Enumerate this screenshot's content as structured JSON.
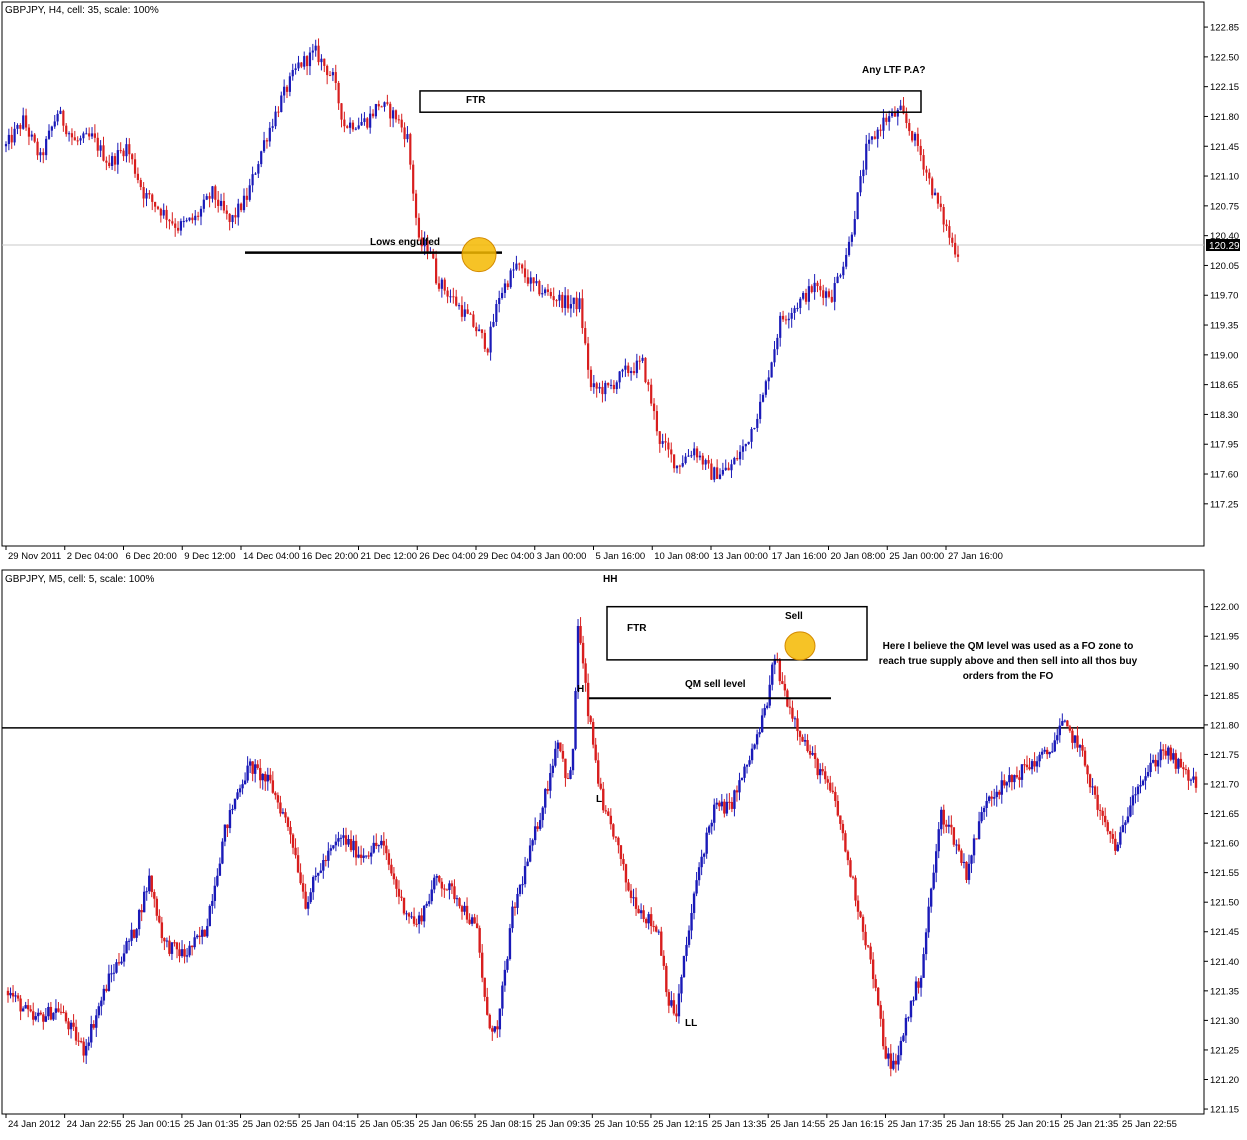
{
  "colors": {
    "bull": "#1a1ab8",
    "bear": "#d81e1e",
    "frame": "#000000",
    "marker": "#f5b800",
    "marker_edge": "#d48a00",
    "current_line": "#c8c8c8"
  },
  "chart_data": [
    {
      "type": "candlestick",
      "title": "GBPJPY, H4, cell: 35, scale: 100%",
      "ylim": [
        117.06,
        122.98
      ],
      "y_ticks": [
        "122.85",
        "122.50",
        "122.15",
        "121.80",
        "121.45",
        "121.10",
        "120.75",
        "120.40",
        "120.05",
        "119.70",
        "119.35",
        "119.00",
        "118.65",
        "118.30",
        "117.95",
        "117.60",
        "117.25"
      ],
      "x_ticks": [
        "29 Nov 2011",
        "2 Dec 04:00",
        "6 Dec 20:00",
        "9 Dec 12:00",
        "14 Dec 04:00",
        "16 Dec 20:00",
        "21 Dec 12:00",
        "26 Dec 04:00",
        "29 Dec 04:00",
        "3 Jan 00:00",
        "5 Jan 16:00",
        "10 Jan 08:00",
        "13 Jan 00:00",
        "17 Jan 16:00",
        "20 Jan 08:00",
        "25 Jan 00:00",
        "27 Jan 16:00"
      ],
      "current_price": "120.29",
      "path_points": [
        [
          0,
          121.45
        ],
        [
          6,
          121.75
        ],
        [
          12,
          121.3
        ],
        [
          18,
          121.85
        ],
        [
          24,
          121.5
        ],
        [
          30,
          121.55
        ],
        [
          36,
          121.25
        ],
        [
          42,
          121.45
        ],
        [
          48,
          120.9
        ],
        [
          54,
          120.7
        ],
        [
          60,
          120.5
        ],
        [
          66,
          120.6
        ],
        [
          72,
          120.9
        ],
        [
          78,
          120.55
        ],
        [
          84,
          120.85
        ],
        [
          90,
          121.5
        ],
        [
          96,
          122.0
        ],
        [
          102,
          122.4
        ],
        [
          108,
          122.55
        ],
        [
          114,
          122.25
        ],
        [
          118,
          121.7
        ],
        [
          126,
          121.75
        ],
        [
          130,
          121.95
        ],
        [
          136,
          121.8
        ],
        [
          140,
          121.55
        ],
        [
          144,
          120.3
        ],
        [
          148,
          120.25
        ],
        [
          150,
          119.9
        ],
        [
          156,
          119.65
        ],
        [
          162,
          119.4
        ],
        [
          168,
          119.1
        ],
        [
          172,
          119.7
        ],
        [
          178,
          120.05
        ],
        [
          184,
          119.8
        ],
        [
          190,
          119.7
        ],
        [
          196,
          119.6
        ],
        [
          200,
          119.6
        ],
        [
          204,
          118.6
        ],
        [
          210,
          118.6
        ],
        [
          216,
          118.8
        ],
        [
          222,
          118.9
        ],
        [
          228,
          118.0
        ],
        [
          234,
          117.7
        ],
        [
          240,
          117.9
        ],
        [
          246,
          117.6
        ],
        [
          252,
          117.65
        ],
        [
          258,
          117.95
        ],
        [
          264,
          118.5
        ],
        [
          270,
          119.4
        ],
        [
          276,
          119.6
        ],
        [
          282,
          119.8
        ],
        [
          288,
          119.7
        ],
        [
          294,
          120.3
        ],
        [
          300,
          121.4
        ],
        [
          306,
          121.75
        ],
        [
          312,
          121.85
        ],
        [
          318,
          121.45
        ],
        [
          324,
          120.85
        ],
        [
          330,
          120.3
        ],
        [
          332,
          120.2
        ]
      ],
      "annotations": {
        "ftr": "FTR",
        "ltf": "Any LTF P.A?",
        "lows": "Lows engulfed"
      },
      "ftr_zone": [
        121.85,
        122.1
      ],
      "lows_level": 120.2
    },
    {
      "type": "candlestick",
      "title": "GBPJPY, M5, cell: 5, scale: 100%",
      "ylim": [
        121.145,
        122.035
      ],
      "y_ticks": [
        "122.00",
        "121.95",
        "121.90",
        "121.85",
        "121.80",
        "121.75",
        "121.70",
        "121.65",
        "121.60",
        "121.55",
        "121.50",
        "121.45",
        "121.40",
        "121.35",
        "121.30",
        "121.25",
        "121.20",
        "121.15"
      ],
      "x_ticks": [
        "24 Jan 2012",
        "24 Jan 22:55",
        "25 Jan 00:15",
        "25 Jan 01:35",
        "25 Jan 02:55",
        "25 Jan 04:15",
        "25 Jan 05:35",
        "25 Jan 06:55",
        "25 Jan 08:15",
        "25 Jan 09:35",
        "25 Jan 10:55",
        "25 Jan 12:15",
        "25 Jan 13:35",
        "25 Jan 14:55",
        "25 Jan 16:15",
        "25 Jan 17:35",
        "25 Jan 18:55",
        "25 Jan 20:15",
        "25 Jan 21:35",
        "25 Jan 22:55"
      ],
      "path_points": [
        [
          0,
          121.35
        ],
        [
          10,
          121.3
        ],
        [
          20,
          121.32
        ],
        [
          30,
          121.25
        ],
        [
          40,
          121.37
        ],
        [
          50,
          121.45
        ],
        [
          56,
          121.54
        ],
        [
          62,
          121.43
        ],
        [
          70,
          121.41
        ],
        [
          78,
          121.45
        ],
        [
          86,
          121.62
        ],
        [
          92,
          121.7
        ],
        [
          96,
          121.73
        ],
        [
          104,
          121.7
        ],
        [
          112,
          121.62
        ],
        [
          118,
          121.5
        ],
        [
          124,
          121.56
        ],
        [
          132,
          121.61
        ],
        [
          140,
          121.58
        ],
        [
          148,
          121.6
        ],
        [
          156,
          121.5
        ],
        [
          162,
          121.46
        ],
        [
          170,
          121.54
        ],
        [
          178,
          121.51
        ],
        [
          186,
          121.45
        ],
        [
          190,
          121.3
        ],
        [
          194,
          121.28
        ],
        [
          200,
          121.48
        ],
        [
          208,
          121.6
        ],
        [
          214,
          121.7
        ],
        [
          218,
          121.78
        ],
        [
          222,
          121.7
        ],
        [
          224,
          121.75
        ],
        [
          226,
          121.97
        ],
        [
          228,
          121.9
        ],
        [
          230,
          121.82
        ],
        [
          233,
          121.74
        ],
        [
          236,
          121.65
        ],
        [
          240,
          121.62
        ],
        [
          246,
          121.52
        ],
        [
          252,
          121.48
        ],
        [
          258,
          121.45
        ],
        [
          262,
          121.33
        ],
        [
          265,
          121.31
        ],
        [
          268,
          121.4
        ],
        [
          274,
          121.56
        ],
        [
          280,
          121.66
        ],
        [
          286,
          121.66
        ],
        [
          292,
          121.72
        ],
        [
          298,
          121.79
        ],
        [
          302,
          121.86
        ],
        [
          304,
          121.92
        ],
        [
          306,
          121.88
        ],
        [
          310,
          121.83
        ],
        [
          314,
          121.79
        ],
        [
          318,
          121.75
        ],
        [
          322,
          121.72
        ],
        [
          328,
          121.67
        ],
        [
          334,
          121.55
        ],
        [
          342,
          121.4
        ],
        [
          348,
          121.24
        ],
        [
          352,
          121.22
        ],
        [
          356,
          121.3
        ],
        [
          362,
          121.38
        ],
        [
          366,
          121.52
        ],
        [
          370,
          121.65
        ],
        [
          374,
          121.62
        ],
        [
          380,
          121.55
        ],
        [
          388,
          121.68
        ],
        [
          396,
          121.7
        ],
        [
          404,
          121.73
        ],
        [
          412,
          121.75
        ],
        [
          418,
          121.8
        ],
        [
          424,
          121.77
        ],
        [
          428,
          121.72
        ],
        [
          432,
          121.66
        ],
        [
          436,
          121.62
        ],
        [
          440,
          121.59
        ],
        [
          446,
          121.69
        ],
        [
          452,
          121.72
        ],
        [
          458,
          121.76
        ],
        [
          466,
          121.72
        ],
        [
          471,
          121.7
        ]
      ],
      "annotations": {
        "hh": "HH",
        "ftr": "FTR",
        "sell": "Sell",
        "h": "H",
        "l": "L",
        "ll": "LL",
        "qm": "QM sell level",
        "note": [
          "Here I believe the QM level was used as a FO zone to",
          "reach true supply above and then sell into all thos buy",
          "orders from the FO"
        ]
      },
      "ftr_zone": [
        121.91,
        122.0
      ],
      "qm_level": 121.845,
      "h_line_level": 121.795
    }
  ]
}
